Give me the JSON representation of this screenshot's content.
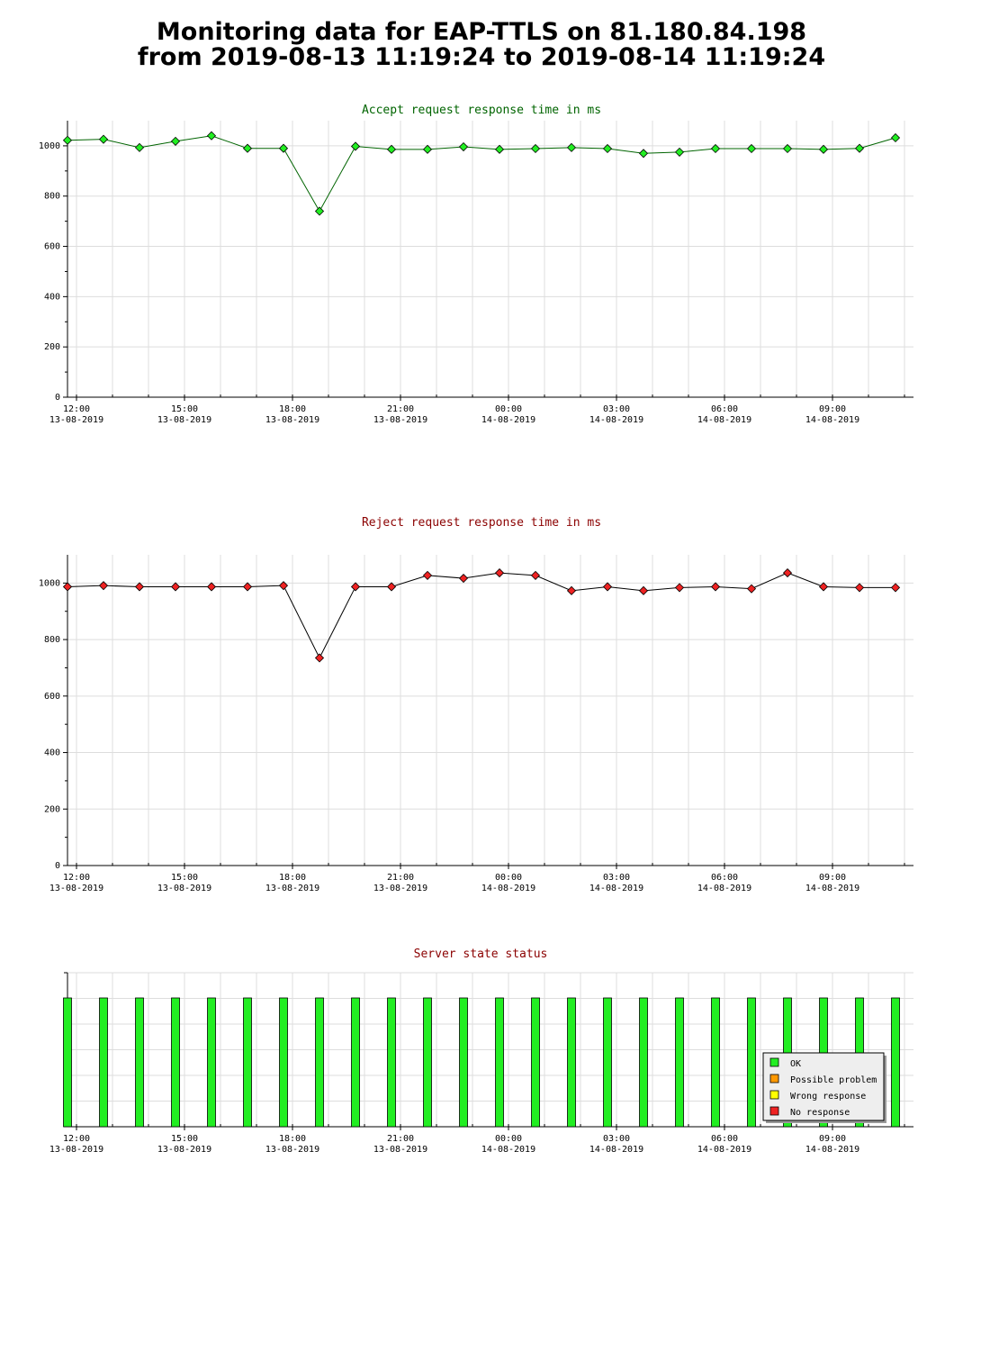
{
  "page_title": {
    "line1": "Monitoring data for EAP-TTLS on 81.180.84.198",
    "line2": "from 2019-08-13 11:19:24 to 2019-08-14 11:19:24"
  },
  "x_ticks": [
    {
      "time": "12:00",
      "date": "13-08-2019"
    },
    {
      "time": "15:00",
      "date": "13-08-2019"
    },
    {
      "time": "18:00",
      "date": "13-08-2019"
    },
    {
      "time": "21:00",
      "date": "13-08-2019"
    },
    {
      "time": "00:00",
      "date": "14-08-2019"
    },
    {
      "time": "03:00",
      "date": "14-08-2019"
    },
    {
      "time": "06:00",
      "date": "14-08-2019"
    },
    {
      "time": "09:00",
      "date": "14-08-2019"
    }
  ],
  "chart_data": [
    {
      "type": "line",
      "title": "Accept request response time in ms",
      "title_color": "#006400",
      "line_color": "#006400",
      "marker_color": "#22ee22",
      "x": [
        "2019-08-13 11:45",
        "2019-08-13 12:45",
        "2019-08-13 13:45",
        "2019-08-13 14:45",
        "2019-08-13 15:45",
        "2019-08-13 16:45",
        "2019-08-13 17:45",
        "2019-08-13 18:45",
        "2019-08-13 19:45",
        "2019-08-13 20:45",
        "2019-08-13 21:45",
        "2019-08-13 22:45",
        "2019-08-13 23:45",
        "2019-08-14 00:45",
        "2019-08-14 01:45",
        "2019-08-14 02:45",
        "2019-08-14 03:45",
        "2019-08-14 04:45",
        "2019-08-14 05:45",
        "2019-08-14 06:45",
        "2019-08-14 07:45",
        "2019-08-14 08:45",
        "2019-08-14 09:45",
        "2019-08-14 10:45"
      ],
      "values": [
        1022,
        1026,
        993,
        1018,
        1040,
        990,
        990,
        740,
        998,
        986,
        986,
        996,
        986,
        989,
        993,
        989,
        970,
        975,
        989,
        989,
        989,
        986,
        990,
        1032
      ],
      "ylim": [
        0,
        1100
      ],
      "yticks": [
        0,
        200,
        400,
        600,
        800,
        1000
      ],
      "grid": true
    },
    {
      "type": "line",
      "title": "Reject request response time in ms",
      "title_color": "#8b0000",
      "line_color": "#000000",
      "marker_color": "#ee2222",
      "x": [
        "2019-08-13 11:45",
        "2019-08-13 12:45",
        "2019-08-13 13:45",
        "2019-08-13 14:45",
        "2019-08-13 15:45",
        "2019-08-13 16:45",
        "2019-08-13 17:45",
        "2019-08-13 18:45",
        "2019-08-13 19:45",
        "2019-08-13 20:45",
        "2019-08-13 21:45",
        "2019-08-13 22:45",
        "2019-08-13 23:45",
        "2019-08-14 00:45",
        "2019-08-14 01:45",
        "2019-08-14 02:45",
        "2019-08-14 03:45",
        "2019-08-14 04:45",
        "2019-08-14 05:45",
        "2019-08-14 06:45",
        "2019-08-14 07:45",
        "2019-08-14 08:45",
        "2019-08-14 09:45",
        "2019-08-14 10:45"
      ],
      "values": [
        987,
        991,
        987,
        987,
        987,
        987,
        991,
        735,
        987,
        987,
        1027,
        1017,
        1036,
        1027,
        973,
        987,
        973,
        984,
        987,
        980,
        1036,
        987,
        984,
        984
      ],
      "ylim": [
        0,
        1100
      ],
      "yticks": [
        0,
        200,
        400,
        600,
        800,
        1000
      ],
      "grid": true
    },
    {
      "type": "bar",
      "title": "Server state status",
      "title_color": "#8b0000",
      "x": [
        "2019-08-13 11:45",
        "2019-08-13 12:45",
        "2019-08-13 13:45",
        "2019-08-13 14:45",
        "2019-08-13 15:45",
        "2019-08-13 16:45",
        "2019-08-13 17:45",
        "2019-08-13 18:45",
        "2019-08-13 19:45",
        "2019-08-13 20:45",
        "2019-08-13 21:45",
        "2019-08-13 22:45",
        "2019-08-13 23:45",
        "2019-08-14 00:45",
        "2019-08-14 01:45",
        "2019-08-14 02:45",
        "2019-08-14 03:45",
        "2019-08-14 04:45",
        "2019-08-14 05:45",
        "2019-08-14 06:45",
        "2019-08-14 07:45",
        "2019-08-14 08:45",
        "2019-08-14 09:45",
        "2019-08-14 10:45"
      ],
      "states": [
        "OK",
        "OK",
        "OK",
        "OK",
        "OK",
        "OK",
        "OK",
        "OK",
        "OK",
        "OK",
        "OK",
        "OK",
        "OK",
        "OK",
        "OK",
        "OK",
        "OK",
        "OK",
        "OK",
        "OK",
        "OK",
        "OK",
        "OK",
        "OK"
      ],
      "legend": [
        {
          "label": "OK",
          "color": "#22ee22"
        },
        {
          "label": "Possible problem",
          "color": "#ff9900"
        },
        {
          "label": "Wrong response",
          "color": "#ffff00"
        },
        {
          "label": "No response",
          "color": "#ee2222"
        }
      ],
      "legend_position": "bottom-right",
      "grid": true
    }
  ]
}
